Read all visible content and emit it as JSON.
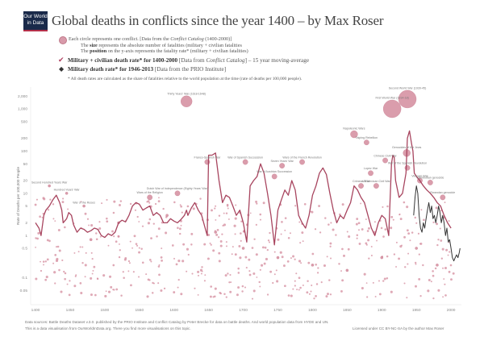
{
  "header": {
    "logo_line1": "Our World",
    "logo_line2": "in Data",
    "title": "Global deaths in conflicts since the year 1400 – by Max Roser"
  },
  "legend": {
    "circle_main": "Each circle represents one conflict. [Data from the ",
    "circle_source": "Conflict Catalog",
    "circle_years": " (1400-2000)]",
    "size_bold": "size",
    "size_text_pre": "The ",
    "size_text_post": " represents the absolute number of fatalities (military + civilian fatalities",
    "position_bold": "position",
    "position_text_pre": "The ",
    "position_text_post": " on the y-axis represents the fatality rate* (military + civilian fatalities)",
    "line1_bold": "Military + civilian death rate* for 1400-2000",
    "line1_src": " [Data from ",
    "line1_src_italic": "Conflict Catalog",
    "line1_tail": "] – 15 year moving-average",
    "line2_bold": "Military death rate* for 1946-2013",
    "line2_tail": " [Data from the PRIO Institute]",
    "footnote": "* All death rates are calculated as the share of fatalities relative to the world population at the time (rate of deaths per 100,000 people)."
  },
  "footer": {
    "sources": "Data sources: Battle Deaths Dataset v.3.0. published by the PRIO Institute and Conflict Catalog by Peter Brecke for data on battle deaths. And world population data from HYDE and UN.",
    "note": "This is a data visualisation from OurWorldInData.org. There you find more visualisations on this topic.",
    "license": "Licensed under CC BY-NC-SA by the author Max Roser"
  },
  "colors": {
    "circle_fill": "#d48c9e",
    "circle_stroke": "#c47488",
    "line_main": "#a8455f",
    "line_military": "#333333",
    "logo_bg": "#1a2a4a",
    "logo_accent": "#b5304a"
  },
  "chart_data": {
    "type": "scatter",
    "title": "Global deaths in conflicts since the year 1400 – by Max Roser",
    "xlabel": "",
    "ylabel": "Rate of Deaths per 100,000 People",
    "xlim": [
      1400,
      2015
    ],
    "ylim": [
      0.03,
      3000
    ],
    "yscale": "log",
    "x_ticks": [
      1400,
      1450,
      1500,
      1550,
      1600,
      1650,
      1700,
      1750,
      1800,
      1850,
      1900,
      1950,
      2000
    ],
    "y_ticks": [
      {
        "v": 2000,
        "label": "2,000"
      },
      {
        "v": 1000,
        "label": "1,000"
      },
      {
        "v": 500,
        "label": "500"
      },
      {
        "v": 200,
        "label": "200"
      },
      {
        "v": 100,
        "label": "100"
      },
      {
        "v": 50,
        "label": "50"
      },
      {
        "v": 20,
        "label": "20"
      },
      {
        "v": 10,
        "label": "10"
      },
      {
        "v": 5,
        "label": "5"
      },
      {
        "v": 2,
        "label": "2"
      },
      {
        "v": 1,
        "label": "1"
      },
      {
        "v": 0.5,
        "label": "0.5"
      },
      {
        "v": 0.1,
        "label": "0.1"
      },
      {
        "v": 0.05,
        "label": "0.05"
      }
    ],
    "grid": false,
    "series": [
      {
        "name": "Military + civilian death rate for 1400-2000 (15 year moving-average)",
        "type": "line",
        "x": [
          1400,
          1405,
          1408,
          1412,
          1415,
          1420,
          1425,
          1430,
          1435,
          1438,
          1440,
          1445,
          1448,
          1452,
          1455,
          1460,
          1465,
          1470,
          1475,
          1480,
          1485,
          1490,
          1495,
          1500,
          1505,
          1510,
          1515,
          1520,
          1525,
          1530,
          1535,
          1540,
          1545,
          1550,
          1555,
          1560,
          1565,
          1570,
          1575,
          1580,
          1585,
          1590,
          1595,
          1600,
          1605,
          1610,
          1615,
          1618,
          1620,
          1625,
          1630,
          1635,
          1640,
          1645,
          1648,
          1650,
          1655,
          1660,
          1665,
          1670,
          1675,
          1680,
          1685,
          1690,
          1695,
          1700,
          1705,
          1710,
          1715,
          1720,
          1725,
          1730,
          1735,
          1740,
          1745,
          1750,
          1755,
          1760,
          1765,
          1770,
          1775,
          1780,
          1785,
          1790,
          1795,
          1800,
          1805,
          1810,
          1815,
          1820,
          1825,
          1830,
          1835,
          1840,
          1845,
          1850,
          1855,
          1860,
          1865,
          1870,
          1875,
          1880,
          1885,
          1890,
          1895,
          1900,
          1905,
          1910,
          1914,
          1916,
          1918,
          1920,
          1925,
          1930,
          1935,
          1937,
          1940,
          1943,
          1945,
          1947,
          1950,
          1955,
          1960,
          1965,
          1970,
          1975,
          1980,
          1985,
          1990,
          1995,
          2000
        ],
        "values": [
          2.0,
          1.5,
          1.0,
          3.0,
          4.0,
          5.0,
          7.0,
          9.0,
          6.0,
          4.0,
          2.0,
          2.5,
          3.5,
          3.0,
          1.8,
          1.2,
          1.5,
          1.4,
          1.2,
          1.3,
          1.5,
          1.4,
          1.0,
          0.9,
          1.1,
          1.0,
          1.2,
          2.0,
          2.3,
          2.1,
          3.0,
          5.0,
          6.0,
          5.5,
          4.0,
          4.5,
          5.0,
          3.0,
          3.5,
          3.0,
          2.0,
          2.0,
          2.5,
          2.2,
          2.0,
          2.4,
          3.0,
          4.0,
          3.0,
          4.5,
          6.0,
          4.0,
          3.0,
          1.5,
          1.0,
          80.0,
          80.0,
          90.0,
          20.0,
          6.0,
          9.0,
          8.0,
          5.0,
          3.0,
          4.0,
          2.0,
          0.7,
          15.0,
          20.0,
          25.0,
          50.0,
          30.0,
          10.0,
          3.0,
          0.6,
          4.0,
          7.0,
          12.0,
          9.0,
          20.0,
          12.0,
          3.0,
          2.0,
          1.5,
          3.0,
          9.0,
          15.0,
          30.0,
          40.0,
          28.0,
          10.0,
          4.0,
          2.0,
          3.0,
          2.5,
          4.0,
          6.0,
          15.0,
          12.0,
          8.0,
          6.0,
          3.0,
          1.5,
          1.0,
          2.0,
          3.0,
          2.5,
          1.0,
          50.0,
          80.0,
          70.0,
          20.0,
          8.0,
          10.0,
          30.0,
          200.0,
          300.0,
          150.0,
          100.0,
          30.0,
          25.0,
          20.0,
          15.0,
          12.0,
          10.0,
          8.0,
          6.0,
          5.0,
          3.0,
          2.0,
          1.5
        ]
      },
      {
        "name": "Military death rate for 1946-2013 (PRIO)",
        "type": "line",
        "x": [
          1946,
          1948,
          1950,
          1952,
          1954,
          1956,
          1958,
          1960,
          1962,
          1964,
          1966,
          1968,
          1970,
          1972,
          1974,
          1976,
          1978,
          1980,
          1982,
          1984,
          1986,
          1988,
          1990,
          1992,
          1994,
          1996,
          1998,
          2000,
          2002,
          2004,
          2006,
          2008,
          2010,
          2012,
          2013
        ],
        "values": [
          3.0,
          8.0,
          15.0,
          10.0,
          3.0,
          1.5,
          1.2,
          2.0,
          1.5,
          2.5,
          4.0,
          6.0,
          3.5,
          5.0,
          2.5,
          3.0,
          2.0,
          3.0,
          5.0,
          3.5,
          2.0,
          3.0,
          2.0,
          1.0,
          1.5,
          0.7,
          0.8,
          0.5,
          0.3,
          0.25,
          0.3,
          0.35,
          0.3,
          0.4,
          0.5
        ]
      },
      {
        "name": "Conflicts (circles; size = absolute fatalities)",
        "type": "scatter",
        "points": [
          {
            "x": 1618,
            "y": 1500,
            "size": "large",
            "label": "Thirty Years' War (1618-1648)"
          },
          {
            "x": 1937,
            "y": 1700,
            "size": "xlarge",
            "label": "Second World War (1939-45)"
          },
          {
            "x": 1915,
            "y": 1000,
            "size": "xlarge",
            "label": "First World War (1914-18)"
          },
          {
            "x": 1936,
            "y": 90,
            "size": "medium",
            "label": "Genocides of the Jews"
          },
          {
            "x": 1860,
            "y": 250,
            "size": "medium",
            "label": "Napoleonic Wars"
          },
          {
            "x": 1878,
            "y": 160,
            "size": "small",
            "label": "Taiping Rebellion"
          },
          {
            "x": 1905,
            "y": 60,
            "size": "small",
            "label": "Chinese Civil War"
          },
          {
            "x": 1937,
            "y": 40,
            "size": "small",
            "label": "War of the Spanish Revolution"
          },
          {
            "x": 1955,
            "y": 20,
            "size": "small",
            "label": "Vietnam War"
          },
          {
            "x": 1970,
            "y": 18,
            "size": "small",
            "label": "Cambodian genocide"
          },
          {
            "x": 1988,
            "y": 8,
            "size": "small",
            "label": "Rwandan genocide"
          },
          {
            "x": 1648,
            "y": 55,
            "size": "small",
            "label": "Franco-Spanish War"
          },
          {
            "x": 1703,
            "y": 55,
            "size": "small",
            "label": "War of Spanish Succession"
          },
          {
            "x": 1756,
            "y": 45,
            "size": "small",
            "label": "Seven Years' War"
          },
          {
            "x": 1785,
            "y": 55,
            "size": "small",
            "label": "Wars of the French Revolution"
          },
          {
            "x": 1745,
            "y": 25,
            "size": "small",
            "label": "War of Austrian Succession"
          },
          {
            "x": 1565,
            "y": 8,
            "size": "small",
            "label": "Wars of the Religion"
          },
          {
            "x": 1605,
            "y": 10,
            "size": "small",
            "label": "Dutch War of Independence (Eighty Years' War)"
          },
          {
            "x": 1420,
            "y": 15,
            "size": "tiny",
            "label": "Second Hundred Years War"
          },
          {
            "x": 1445,
            "y": 10,
            "size": "tiny",
            "label": "Hundred Years' War"
          },
          {
            "x": 1470,
            "y": 5,
            "size": "tiny",
            "label": "War of the Roses"
          },
          {
            "x": 1884,
            "y": 30,
            "size": "small",
            "label": "Lopez War"
          },
          {
            "x": 1870,
            "y": 15,
            "size": "small",
            "label": "Crimean War"
          },
          {
            "x": 1892,
            "y": 15,
            "size": "small",
            "label": "US Mexican Civil War"
          },
          {
            "x": 1590,
            "y": 3,
            "size": "tiny"
          },
          {
            "x": 1520,
            "y": 2,
            "size": "tiny"
          },
          {
            "x": 1480,
            "y": 0.8,
            "size": "tiny"
          },
          {
            "x": 1660,
            "y": 1.2,
            "size": "tiny"
          },
          {
            "x": 1700,
            "y": 0.5,
            "size": "tiny"
          },
          {
            "x": 1750,
            "y": 0.3,
            "size": "tiny"
          },
          {
            "x": 1800,
            "y": 0.2,
            "size": "tiny"
          },
          {
            "x": 1850,
            "y": 0.15,
            "size": "tiny"
          },
          {
            "x": 1900,
            "y": 0.3,
            "size": "tiny"
          },
          {
            "x": 1950,
            "y": 0.5,
            "size": "tiny"
          },
          {
            "x": 1980,
            "y": 0.2,
            "size": "tiny"
          }
        ]
      }
    ],
    "annotations": [
      "Second World War (1939-45)",
      "First World War (1914-18)",
      "Thirty Years' War (1618-48)",
      "Genocides of the Jews",
      "War of the Spanish Revolution",
      "Vietnam War",
      "Cambodian genocide",
      "Rwandan genocide",
      "Napoleonic Wars",
      "Taiping Rebellion",
      "Lopez War",
      "Crimean War",
      "US Mexican Civil War",
      "Wars of the French Revolution",
      "Seven Years' War",
      "War of Spanish Succession",
      "War of Austrian Succession",
      "Franco-Spanish War",
      "Wars of the Religion",
      "Dutch War of Independence (Eighty Years' War)",
      "Second Hundred Years War",
      "Hundred Years' War",
      "War of the Roses"
    ]
  }
}
